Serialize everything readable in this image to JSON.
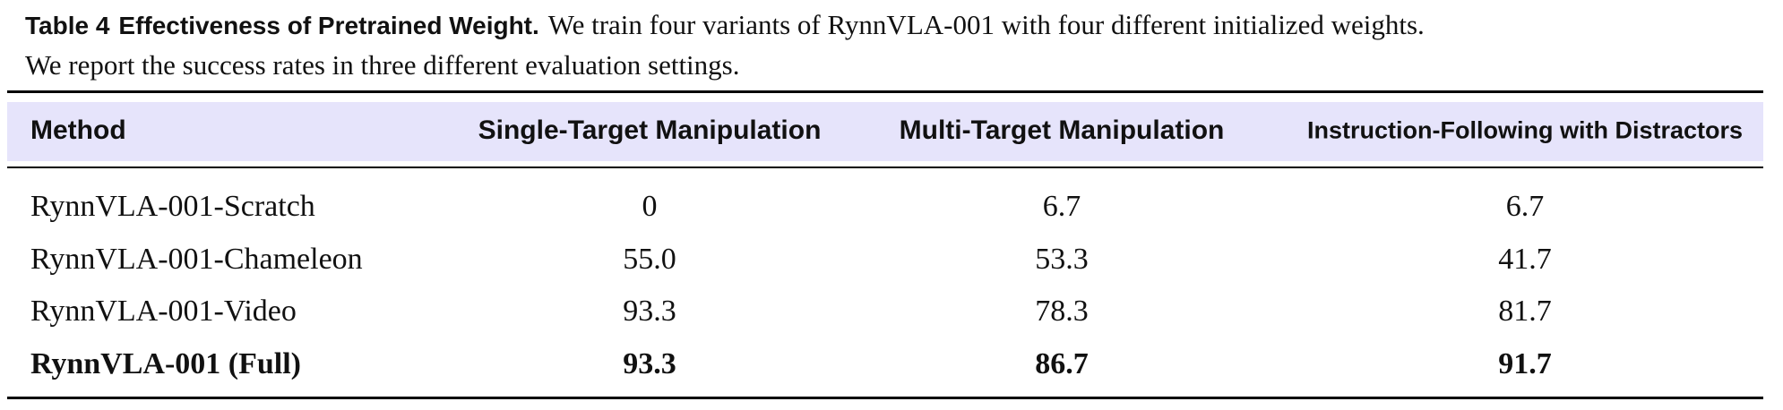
{
  "caption": {
    "label": "Table 4",
    "title": "Effectiveness of Pretrained Weight.",
    "text": [
      "We train four variants of RynnVLA-001 with four different initialized weights.",
      "We report the success rates in three different evaluation settings."
    ]
  },
  "table": {
    "header": [
      "Method",
      "Single-Target Manipulation",
      "Multi-Target Manipulation",
      "Instruction-Following with Distractors"
    ],
    "rows": [
      [
        "RynnVLA-001-Scratch",
        "0",
        "6.7",
        "6.7"
      ],
      [
        "RynnVLA-001-Chameleon",
        "55.0",
        "53.3",
        "41.7"
      ],
      [
        "RynnVLA-001-Video",
        "93.3",
        "78.3",
        "81.7"
      ],
      [
        "RynnVLA-001 (Full)",
        "93.3",
        "86.7",
        "91.7"
      ]
    ]
  }
}
